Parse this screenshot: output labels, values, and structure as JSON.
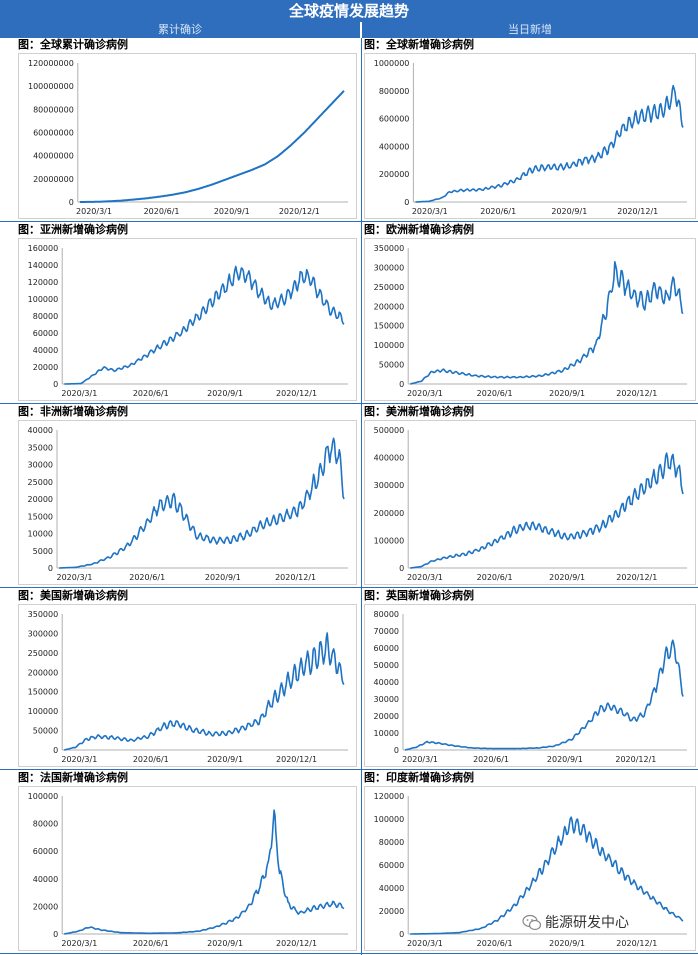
{
  "header": {
    "title": "全球疫情发展趋势",
    "left_col": "累计确诊",
    "right_col": "当日新增"
  },
  "watermark": {
    "icon": "wechat-icon",
    "text": "能源研发中心"
  },
  "colors": {
    "line": "#1f73c4",
    "header": "#2f6ebd",
    "axis": "#b0b0b0"
  },
  "chart_data": [
    {
      "id": "global-cumulative",
      "type": "line",
      "title": "图：全球累计确诊病例",
      "x_ticks": [
        "2020/3/1",
        "2020/6/1",
        "2020/9/1",
        "2020/12/1"
      ],
      "ylim": [
        0,
        120000000
      ],
      "y_ticks": [
        "0",
        "20000000",
        "40000000",
        "60000000",
        "80000000",
        "100000000",
        "120000000"
      ],
      "shape": [
        [
          0.0,
          0
        ],
        [
          0.05,
          0.0008
        ],
        [
          0.1,
          0.004
        ],
        [
          0.15,
          0.009
        ],
        [
          0.2,
          0.017
        ],
        [
          0.25,
          0.026
        ],
        [
          0.3,
          0.038
        ],
        [
          0.35,
          0.052
        ],
        [
          0.4,
          0.07
        ],
        [
          0.45,
          0.095
        ],
        [
          0.5,
          0.125
        ],
        [
          0.55,
          0.16
        ],
        [
          0.6,
          0.195
        ],
        [
          0.65,
          0.23
        ],
        [
          0.7,
          0.27
        ],
        [
          0.75,
          0.33
        ],
        [
          0.8,
          0.41
        ],
        [
          0.85,
          0.5
        ],
        [
          0.9,
          0.6
        ],
        [
          0.95,
          0.7
        ],
        [
          1.0,
          0.8
        ]
      ],
      "noise": 0,
      "period": 7,
      "seed": 1
    },
    {
      "id": "global-daily",
      "type": "line",
      "title": "图：全球新增确诊病例",
      "x_ticks": [
        "2020/3/1",
        "2020/6/1",
        "2020/9/1",
        "2020/12/1"
      ],
      "ylim": [
        0,
        1000000
      ],
      "y_ticks": [
        "0",
        "200000",
        "400000",
        "600000",
        "800000",
        "1000000"
      ],
      "shape": [
        [
          0.0,
          0
        ],
        [
          0.05,
          0.005
        ],
        [
          0.1,
          0.03
        ],
        [
          0.13,
          0.075
        ],
        [
          0.18,
          0.085
        ],
        [
          0.25,
          0.09
        ],
        [
          0.32,
          0.12
        ],
        [
          0.38,
          0.16
        ],
        [
          0.43,
          0.23
        ],
        [
          0.48,
          0.25
        ],
        [
          0.53,
          0.25
        ],
        [
          0.58,
          0.26
        ],
        [
          0.63,
          0.3
        ],
        [
          0.68,
          0.32
        ],
        [
          0.73,
          0.4
        ],
        [
          0.77,
          0.52
        ],
        [
          0.82,
          0.6
        ],
        [
          0.87,
          0.63
        ],
        [
          0.92,
          0.66
        ],
        [
          0.95,
          0.72
        ],
        [
          0.97,
          0.8
        ],
        [
          0.985,
          0.68
        ],
        [
          1.0,
          0.58
        ]
      ],
      "noise": 0.06,
      "period": 7,
      "seed": 2
    },
    {
      "id": "asia-daily",
      "type": "line",
      "title": "图：亚洲新增确诊病例",
      "x_ticks": [
        "2020/3/1",
        "2020/6/1",
        "2020/9/1",
        "2020/12/1"
      ],
      "ylim": [
        0,
        160000
      ],
      "y_ticks": [
        "0",
        "20000",
        "40000",
        "60000",
        "80000",
        "100000",
        "120000",
        "140000",
        "160000"
      ],
      "shape": [
        [
          0.0,
          0
        ],
        [
          0.06,
          0.003
        ],
        [
          0.1,
          0.06
        ],
        [
          0.14,
          0.12
        ],
        [
          0.18,
          0.1
        ],
        [
          0.24,
          0.14
        ],
        [
          0.3,
          0.22
        ],
        [
          0.36,
          0.3
        ],
        [
          0.42,
          0.38
        ],
        [
          0.48,
          0.5
        ],
        [
          0.53,
          0.62
        ],
        [
          0.58,
          0.72
        ],
        [
          0.62,
          0.82
        ],
        [
          0.66,
          0.78
        ],
        [
          0.7,
          0.67
        ],
        [
          0.74,
          0.58
        ],
        [
          0.78,
          0.62
        ],
        [
          0.82,
          0.7
        ],
        [
          0.85,
          0.8
        ],
        [
          0.88,
          0.78
        ],
        [
          0.91,
          0.66
        ],
        [
          0.95,
          0.55
        ],
        [
          1.0,
          0.47
        ]
      ],
      "noise": 0.05,
      "period": 7,
      "seed": 3
    },
    {
      "id": "europe-daily",
      "type": "line",
      "title": "图：欧洲新增确诊病例",
      "x_ticks": [
        "2020/3/1",
        "2020/6/1",
        "2020/9/1",
        "2020/12/1"
      ],
      "ylim": [
        0,
        350000
      ],
      "y_ticks": [
        "0",
        "50000",
        "100000",
        "150000",
        "200000",
        "250000",
        "300000",
        "350000"
      ],
      "shape": [
        [
          0.0,
          0
        ],
        [
          0.04,
          0.02
        ],
        [
          0.08,
          0.09
        ],
        [
          0.12,
          0.1
        ],
        [
          0.18,
          0.08
        ],
        [
          0.24,
          0.06
        ],
        [
          0.32,
          0.05
        ],
        [
          0.4,
          0.05
        ],
        [
          0.48,
          0.06
        ],
        [
          0.56,
          0.1
        ],
        [
          0.62,
          0.17
        ],
        [
          0.68,
          0.28
        ],
        [
          0.72,
          0.55
        ],
        [
          0.75,
          0.82
        ],
        [
          0.78,
          0.75
        ],
        [
          0.82,
          0.65
        ],
        [
          0.86,
          0.6
        ],
        [
          0.9,
          0.7
        ],
        [
          0.94,
          0.62
        ],
        [
          0.97,
          0.75
        ],
        [
          1.0,
          0.55
        ]
      ],
      "noise": 0.07,
      "period": 7,
      "seed": 4
    },
    {
      "id": "africa-daily",
      "type": "line",
      "title": "图：非洲新增确诊病例",
      "x_ticks": [
        "2020/3/1",
        "2020/6/1",
        "2020/9/1",
        "2020/12/1"
      ],
      "ylim": [
        0,
        40000
      ],
      "y_ticks": [
        "0",
        "5000",
        "10000",
        "15000",
        "20000",
        "25000",
        "30000",
        "35000",
        "40000"
      ],
      "shape": [
        [
          0.0,
          0
        ],
        [
          0.06,
          0.005
        ],
        [
          0.12,
          0.03
        ],
        [
          0.18,
          0.08
        ],
        [
          0.24,
          0.16
        ],
        [
          0.3,
          0.3
        ],
        [
          0.35,
          0.45
        ],
        [
          0.4,
          0.5
        ],
        [
          0.44,
          0.38
        ],
        [
          0.48,
          0.24
        ],
        [
          0.54,
          0.2
        ],
        [
          0.6,
          0.2
        ],
        [
          0.66,
          0.24
        ],
        [
          0.72,
          0.32
        ],
        [
          0.78,
          0.36
        ],
        [
          0.84,
          0.42
        ],
        [
          0.88,
          0.55
        ],
        [
          0.92,
          0.7
        ],
        [
          0.95,
          0.88
        ],
        [
          0.98,
          0.82
        ],
        [
          1.0,
          0.55
        ]
      ],
      "noise": 0.08,
      "period": 7,
      "seed": 5
    },
    {
      "id": "americas-daily",
      "type": "line",
      "title": "图：美洲新增确诊病例",
      "x_ticks": [
        "2020/3/1",
        "2020/6/1",
        "2020/9/1",
        "2020/12/1"
      ],
      "ylim": [
        0,
        500000
      ],
      "y_ticks": [
        "0",
        "100000",
        "200000",
        "300000",
        "400000",
        "500000"
      ],
      "shape": [
        [
          0.0,
          0
        ],
        [
          0.04,
          0.01
        ],
        [
          0.08,
          0.05
        ],
        [
          0.14,
          0.08
        ],
        [
          0.2,
          0.1
        ],
        [
          0.26,
          0.14
        ],
        [
          0.32,
          0.2
        ],
        [
          0.38,
          0.27
        ],
        [
          0.42,
          0.3
        ],
        [
          0.46,
          0.31
        ],
        [
          0.52,
          0.26
        ],
        [
          0.58,
          0.22
        ],
        [
          0.64,
          0.25
        ],
        [
          0.7,
          0.3
        ],
        [
          0.76,
          0.4
        ],
        [
          0.82,
          0.52
        ],
        [
          0.87,
          0.6
        ],
        [
          0.91,
          0.68
        ],
        [
          0.95,
          0.78
        ],
        [
          0.98,
          0.72
        ],
        [
          1.0,
          0.58
        ]
      ],
      "noise": 0.07,
      "period": 7,
      "seed": 6
    },
    {
      "id": "usa-daily",
      "type": "line",
      "title": "图：美国新增确诊病例",
      "x_ticks": [
        "2020/3/1",
        "2020/6/1",
        "2020/9/1",
        "2020/12/1"
      ],
      "ylim": [
        0,
        350000
      ],
      "y_ticks": [
        "0",
        "50000",
        "100000",
        "150000",
        "200000",
        "250000",
        "300000",
        "350000"
      ],
      "shape": [
        [
          0.0,
          0
        ],
        [
          0.04,
          0.02
        ],
        [
          0.08,
          0.08
        ],
        [
          0.12,
          0.1
        ],
        [
          0.18,
          0.09
        ],
        [
          0.24,
          0.07
        ],
        [
          0.3,
          0.1
        ],
        [
          0.36,
          0.18
        ],
        [
          0.4,
          0.2
        ],
        [
          0.46,
          0.15
        ],
        [
          0.52,
          0.12
        ],
        [
          0.58,
          0.12
        ],
        [
          0.64,
          0.16
        ],
        [
          0.7,
          0.22
        ],
        [
          0.74,
          0.35
        ],
        [
          0.78,
          0.45
        ],
        [
          0.82,
          0.55
        ],
        [
          0.86,
          0.62
        ],
        [
          0.9,
          0.68
        ],
        [
          0.94,
          0.75
        ],
        [
          0.97,
          0.65
        ],
        [
          1.0,
          0.52
        ]
      ],
      "noise": 0.09,
      "period": 7,
      "seed": 7
    },
    {
      "id": "uk-daily",
      "type": "line",
      "title": "图：英国新增确诊病例",
      "x_ticks": [
        "2020/3/1",
        "2020/6/1",
        "2020/9/1",
        "2020/12/1"
      ],
      "ylim": [
        0,
        80000
      ],
      "y_ticks": [
        "0",
        "10000",
        "20000",
        "30000",
        "40000",
        "50000",
        "60000",
        "70000",
        "80000"
      ],
      "shape": [
        [
          0.0,
          0
        ],
        [
          0.04,
          0.02
        ],
        [
          0.08,
          0.06
        ],
        [
          0.12,
          0.05
        ],
        [
          0.18,
          0.03
        ],
        [
          0.24,
          0.015
        ],
        [
          0.32,
          0.01
        ],
        [
          0.4,
          0.01
        ],
        [
          0.48,
          0.015
        ],
        [
          0.54,
          0.03
        ],
        [
          0.6,
          0.08
        ],
        [
          0.66,
          0.2
        ],
        [
          0.7,
          0.3
        ],
        [
          0.74,
          0.32
        ],
        [
          0.78,
          0.28
        ],
        [
          0.82,
          0.22
        ],
        [
          0.86,
          0.26
        ],
        [
          0.9,
          0.45
        ],
        [
          0.94,
          0.7
        ],
        [
          0.97,
          0.75
        ],
        [
          1.0,
          0.42
        ]
      ],
      "noise": 0.06,
      "period": 7,
      "seed": 8
    },
    {
      "id": "france-daily",
      "type": "line",
      "title": "图：法国新增确诊病例",
      "x_ticks": [
        "2020/3/1",
        "2020/6/1",
        "2020/9/1",
        "2020/12/1"
      ],
      "ylim": [
        0,
        100000
      ],
      "y_ticks": [
        "0",
        "20000",
        "40000",
        "60000",
        "80000",
        "100000"
      ],
      "shape": [
        [
          0.0,
          0
        ],
        [
          0.05,
          0.02
        ],
        [
          0.09,
          0.05
        ],
        [
          0.13,
          0.03
        ],
        [
          0.2,
          0.01
        ],
        [
          0.3,
          0.005
        ],
        [
          0.4,
          0.008
        ],
        [
          0.48,
          0.02
        ],
        [
          0.54,
          0.05
        ],
        [
          0.58,
          0.08
        ],
        [
          0.62,
          0.12
        ],
        [
          0.66,
          0.2
        ],
        [
          0.7,
          0.35
        ],
        [
          0.73,
          0.5
        ],
        [
          0.75,
          0.86
        ],
        [
          0.77,
          0.45
        ],
        [
          0.8,
          0.22
        ],
        [
          0.84,
          0.15
        ],
        [
          0.88,
          0.18
        ],
        [
          0.92,
          0.2
        ],
        [
          0.96,
          0.22
        ],
        [
          1.0,
          0.2
        ]
      ],
      "noise": 0.06,
      "period": 7,
      "seed": 9
    },
    {
      "id": "india-daily",
      "type": "line",
      "title": "图：印度新增确诊病例",
      "x_ticks": [
        "2020/3/1",
        "2020/6/1",
        "2020/9/1",
        "2020/12/1"
      ],
      "ylim": [
        0,
        120000
      ],
      "y_ticks": [
        "0",
        "20000",
        "40000",
        "60000",
        "80000",
        "100000",
        "120000"
      ],
      "shape": [
        [
          0.0,
          0
        ],
        [
          0.1,
          0.003
        ],
        [
          0.18,
          0.01
        ],
        [
          0.26,
          0.04
        ],
        [
          0.32,
          0.1
        ],
        [
          0.38,
          0.2
        ],
        [
          0.44,
          0.35
        ],
        [
          0.5,
          0.52
        ],
        [
          0.55,
          0.68
        ],
        [
          0.58,
          0.78
        ],
        [
          0.61,
          0.8
        ],
        [
          0.65,
          0.72
        ],
        [
          0.7,
          0.6
        ],
        [
          0.75,
          0.5
        ],
        [
          0.8,
          0.4
        ],
        [
          0.85,
          0.32
        ],
        [
          0.9,
          0.24
        ],
        [
          0.95,
          0.16
        ],
        [
          1.0,
          0.1
        ]
      ],
      "noise": 0.05,
      "period": 7,
      "seed": 10
    }
  ]
}
